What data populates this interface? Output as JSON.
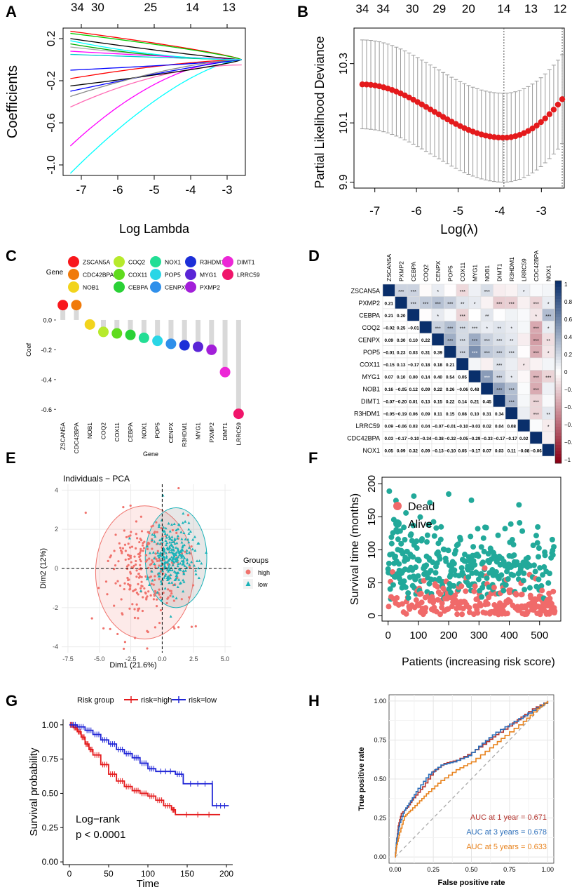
{
  "colors": {
    "red": "#e41a1c",
    "blue": "#1f24d6",
    "pca_high": "#f0736d",
    "pca_low": "#19b2b8",
    "dead": "#f06a6a",
    "alive": "#22a99a",
    "roc1": "#b2302a",
    "roc3": "#2c6fba",
    "roc5": "#e8821c",
    "corr_pos": "#0a2f6b",
    "corr_neg": "#8b0016"
  },
  "chart_data": [
    {
      "panel": "A",
      "type": "line",
      "xlabel": "Log Lambda",
      "ylabel": "Coefficients",
      "xlim": [
        -7.5,
        -2.5
      ],
      "ylim": [
        -1.1,
        0.3
      ],
      "x_ticks": [
        "-7",
        "-6",
        "-5",
        "-4",
        "-3"
      ],
      "y_ticks": [
        "0.2",
        "-0.2",
        "-0.6",
        "-1.0"
      ],
      "top_ticks": [
        "34",
        "30",
        "25",
        "14",
        "13"
      ],
      "x_start": -7.3,
      "x_end": -2.6,
      "series": [
        {
          "color": "#ff0000",
          "start": 0.27,
          "end": 0.0
        },
        {
          "color": "#000000",
          "start": 0.2,
          "end": 0.0
        },
        {
          "color": "#00ffff",
          "start": -1.08,
          "end": 0.0
        },
        {
          "color": "#ff00ff",
          "start": -0.82,
          "end": 0.0
        },
        {
          "color": "#00cc00",
          "start": 0.25,
          "end": 0.0
        },
        {
          "color": "#0000ff",
          "start": -0.3,
          "end": 0.0
        },
        {
          "color": "#aaaaaa",
          "start": 0.12,
          "end": 0.0
        },
        {
          "color": "#ff69b4",
          "start": -0.45,
          "end": -0.05
        },
        {
          "color": "#000000",
          "start": -0.25,
          "end": 0.0
        },
        {
          "color": "#00cccc",
          "start": 0.05,
          "end": 0.0
        },
        {
          "color": "#ff0000",
          "start": -0.18,
          "end": 0.0
        },
        {
          "color": "#00aa00",
          "start": 0.15,
          "end": 0.0
        },
        {
          "color": "#0000ff",
          "start": -0.1,
          "end": 0.0
        },
        {
          "color": "#ff00ff",
          "start": 0.08,
          "end": 0.0
        },
        {
          "color": "#888888",
          "start": -0.35,
          "end": 0.0
        },
        {
          "color": "#00ffff",
          "start": 0.18,
          "end": 0.0
        }
      ]
    },
    {
      "panel": "B",
      "type": "scatter",
      "xlabel": "Log(λ)",
      "ylabel": "Partial Likelihood Deviance",
      "xlim": [
        -7.5,
        -2.45
      ],
      "ylim": [
        9.88,
        10.42
      ],
      "x_ticks": [
        "-7",
        "-6",
        "-5",
        "-4",
        "-3"
      ],
      "y_ticks": [
        "10.3",
        "10.1",
        "9.9"
      ],
      "top_ticks": [
        "34",
        "34",
        "30",
        "29",
        "20",
        "14",
        "13",
        "12"
      ],
      "vlines": [
        -3.9,
        -2.5
      ],
      "x_start": -7.3,
      "x_end": -2.5,
      "n_points": 48,
      "deviance_start": 10.23,
      "deviance_min": 10.05,
      "deviance_end": 10.18,
      "error_halfwidth": 0.15
    },
    {
      "panel": "C",
      "type": "bar",
      "xlabel": "Gene",
      "ylabel": "Coef",
      "legend_title": "Gene",
      "categories": [
        "ZSCAN5A",
        "CDC42BPA",
        "NOB1",
        "COQ2",
        "COX11",
        "CEBPA",
        "NOX1",
        "POP5",
        "CENPX",
        "R3HDM1",
        "MYG1",
        "PXMP2",
        "DIMT1",
        "LRRC59"
      ],
      "values": [
        0.1,
        0.1,
        -0.03,
        -0.08,
        -0.09,
        -0.1,
        -0.12,
        -0.14,
        -0.16,
        -0.17,
        -0.18,
        -0.2,
        -0.35,
        -0.63
      ],
      "point_colors": [
        "#f8171c",
        "#f07a0a",
        "#f2d41c",
        "#b7ea2c",
        "#5fdb1e",
        "#2ad136",
        "#23de95",
        "#2ad6e6",
        "#2f8fea",
        "#1c2fd8",
        "#5a25d6",
        "#a21fd9",
        "#ec27d6",
        "#f0156a"
      ],
      "ylim": [
        -0.66,
        0.16
      ],
      "y_ticks": [
        "0.0",
        "-0.2",
        "-0.4",
        "-0.6"
      ]
    },
    {
      "panel": "D",
      "type": "heatmap",
      "genes": [
        "ZSCAN5A",
        "PXMP2",
        "CEBPA",
        "COQ2",
        "CENPX",
        "POP5",
        "COX11",
        "MYG1",
        "NOB1",
        "DIMT1",
        "R3HDM1",
        "LRRC59",
        "CDC42BPA",
        "NOX1"
      ],
      "lower": [
        [],
        [
          "0.21"
        ],
        [
          "0.21",
          "0.20"
        ],
        [
          "−0.02",
          "0.25",
          "−0.01"
        ],
        [
          "0.09",
          "0.30",
          "0.10",
          "0.22"
        ],
        [
          "−0.01",
          "0.23",
          "0.03",
          "0.31",
          "0.39"
        ],
        [
          "−0.15",
          "0.13",
          "−0.17",
          "0.18",
          "0.18",
          "0.21"
        ],
        [
          "0.07",
          "0.10",
          "0.00",
          "0.14",
          "0.40",
          "0.54",
          "0.05"
        ],
        [
          "0.16",
          "−0.05",
          "0.12",
          "0.09",
          "0.22",
          "0.26",
          "−0.06",
          "0.48"
        ],
        [
          "−0.07",
          "−0.20",
          "0.01",
          "0.13",
          "0.15",
          "0.22",
          "0.14",
          "0.21",
          "0.45"
        ],
        [
          "−0.05",
          "−0.19",
          "0.06",
          "0.09",
          "0.11",
          "0.15",
          "0.08",
          "0.10",
          "0.31",
          "0.34"
        ],
        [
          "0.09",
          "−0.06",
          "0.03",
          "0.04",
          "−0.07",
          "−0.01",
          "−0.10",
          "−0.03",
          "0.02",
          "0.04",
          "0.08"
        ],
        [
          "0.03",
          "−0.17",
          "−0.10",
          "−0.34",
          "−0.38",
          "−0.32",
          "−0.05",
          "−0.29",
          "−0.33",
          "−0.17",
          "−0.17",
          "0.02"
        ],
        [
          "0.05",
          "0.09",
          "0.32",
          "0.09",
          "−0.13",
          "−0.10",
          "0.05",
          "−0.17",
          "0.07",
          "0.03",
          "0.11",
          "−0.08",
          "−0.06"
        ]
      ],
      "upper": [
        [
          "",
          "***",
          "***",
          "",
          "*",
          "",
          "***",
          "",
          "***",
          "",
          "",
          "*",
          "",
          ""
        ],
        [
          "",
          "",
          "***",
          "***",
          "***",
          "***",
          "**",
          "*",
          "",
          "***",
          "***",
          "",
          "***",
          "*"
        ],
        [
          "",
          "",
          "",
          "",
          "*",
          "",
          "***",
          "",
          "**",
          "",
          "",
          "",
          "*",
          "***"
        ],
        [
          "",
          "",
          "",
          "",
          "***",
          "***",
          "***",
          "***",
          "*",
          "**",
          "*",
          "",
          "***",
          "*"
        ],
        [
          "",
          "",
          "",
          "",
          "",
          "***",
          "***",
          "***",
          "***",
          "***",
          "**",
          "",
          "***",
          "**"
        ],
        [
          "",
          "",
          "",
          "",
          "",
          "",
          "***",
          "***",
          "***",
          "***",
          "***",
          "",
          "***",
          "*"
        ],
        [
          "",
          "",
          "",
          "",
          "",
          "",
          "",
          "",
          "",
          "***",
          "",
          "*",
          "",
          ""
        ],
        [
          "",
          "",
          "",
          "",
          "",
          "",
          "",
          "",
          "***",
          "***",
          "*",
          "",
          "***",
          "***"
        ],
        [
          "",
          "",
          "",
          "",
          "",
          "",
          "",
          "",
          "",
          "***",
          "***",
          "",
          "***",
          ""
        ],
        [
          "",
          "",
          "",
          "",
          "",
          "",
          "",
          "",
          "",
          "",
          "***",
          "",
          "***",
          ""
        ],
        [
          "",
          "",
          "",
          "",
          "",
          "",
          "",
          "",
          "",
          "",
          "",
          "",
          "***",
          "**"
        ],
        [
          "",
          "",
          "",
          "",
          "",
          "",
          "",
          "",
          "",
          "",
          "",
          "",
          "",
          "*"
        ],
        [
          "",
          "",
          "",
          "",
          "",
          "",
          "",
          "",
          "",
          "",
          "",
          "",
          "",
          ""
        ],
        [
          "",
          "",
          "",
          "",
          "",
          "",
          "",
          "",
          "",
          "",
          "",
          "",
          "",
          ""
        ]
      ],
      "colorbar_ticks": [
        "1",
        "0.8",
        "0.6",
        "0.4",
        "0.2",
        "0",
        "−0.2",
        "−0.4",
        "−0.6",
        "−0.8",
        "−1"
      ]
    },
    {
      "panel": "E",
      "type": "scatter",
      "title": "Individuals − PCA",
      "xlabel": "Dim1 (21.6%)",
      "ylabel": "Dim2 (12%)",
      "xlim": [
        -8,
        5.5
      ],
      "ylim": [
        -4.3,
        4.3
      ],
      "x_ticks": [
        "-7.5",
        "-5.0",
        "-2.5",
        "0.0",
        "2.5",
        "5.0"
      ],
      "y_ticks": [
        "4",
        "2",
        "0",
        "-2",
        "-4"
      ],
      "legend_title": "Groups",
      "groups": [
        "high",
        "low"
      ],
      "high_center": [
        -1.2,
        -0.1
      ],
      "high_spread": [
        1.5,
        1.4
      ],
      "low_center": [
        0.9,
        0.6
      ],
      "low_spread": [
        1.0,
        0.9
      ],
      "ellipse_high": {
        "cx": -1.4,
        "cy": -0.2,
        "rx": 3.9,
        "ry": 3.4
      },
      "ellipse_low": {
        "cx": 1.1,
        "cy": 0.55,
        "rx": 2.45,
        "ry": 2.55
      },
      "n_points": 270
    },
    {
      "panel": "F",
      "type": "scatter",
      "xlabel": "Patients (increasing risk score)",
      "ylabel": "Survival time (months)",
      "xlim": [
        -20,
        570
      ],
      "ylim": [
        -8,
        210
      ],
      "x_ticks": [
        "0",
        "100",
        "200",
        "300",
        "400",
        "500"
      ],
      "y_ticks": [
        "0",
        "50",
        "100",
        "150",
        "200"
      ],
      "legend": [
        "Dead",
        "Alive"
      ],
      "n_patients": 551
    },
    {
      "panel": "G",
      "type": "line",
      "xlabel": "Time",
      "ylabel": "Survival probability",
      "xlim": [
        -8,
        208
      ],
      "ylim": [
        -0.02,
        1.04
      ],
      "x_ticks": [
        "0",
        "50",
        "100",
        "150",
        "200"
      ],
      "y_ticks": [
        "1.00",
        "0.75",
        "0.50",
        "0.25",
        "0.00"
      ],
      "legend_title": "Risk group",
      "legend": [
        "risk=high",
        "risk=low"
      ],
      "annotation": [
        "Log−rank",
        "p < 0.0001"
      ],
      "high_steps": [
        [
          0,
          1.0
        ],
        [
          5,
          0.98
        ],
        [
          10,
          0.95
        ],
        [
          15,
          0.91
        ],
        [
          20,
          0.86
        ],
        [
          25,
          0.82
        ],
        [
          30,
          0.78
        ],
        [
          40,
          0.71
        ],
        [
          50,
          0.64
        ],
        [
          60,
          0.59
        ],
        [
          70,
          0.55
        ],
        [
          80,
          0.52
        ],
        [
          90,
          0.5
        ],
        [
          100,
          0.48
        ],
        [
          110,
          0.45
        ],
        [
          120,
          0.41
        ],
        [
          130,
          0.38
        ],
        [
          135,
          0.345
        ],
        [
          192,
          0.345
        ]
      ],
      "low_steps": [
        [
          0,
          1.0
        ],
        [
          10,
          0.985
        ],
        [
          20,
          0.96
        ],
        [
          30,
          0.93
        ],
        [
          40,
          0.89
        ],
        [
          50,
          0.86
        ],
        [
          60,
          0.82
        ],
        [
          70,
          0.79
        ],
        [
          80,
          0.76
        ],
        [
          90,
          0.72
        ],
        [
          100,
          0.68
        ],
        [
          110,
          0.66
        ],
        [
          135,
          0.64
        ],
        [
          145,
          0.57
        ],
        [
          182,
          0.57
        ],
        [
          182,
          0.41
        ],
        [
          203,
          0.41
        ]
      ]
    },
    {
      "panel": "H",
      "type": "line",
      "xlabel": "False positive rate",
      "ylabel": "True positive rate",
      "xlim": [
        -0.04,
        1.04
      ],
      "ylim": [
        -0.04,
        1.04
      ],
      "x_ticks": [
        "0.00",
        "0.25",
        "0.50",
        "0.75",
        "1.00"
      ],
      "y_ticks": [
        "1.00",
        "0.75",
        "0.50",
        "0.25",
        "0.00"
      ],
      "auc_labels": [
        "AUC at 1 year = 0.671",
        "AUC at 3 years = 0.678",
        "AUC at 5 years = 0.633"
      ],
      "curves": [
        [
          [
            0,
            0
          ],
          [
            0.01,
            0.1
          ],
          [
            0.02,
            0.2
          ],
          [
            0.04,
            0.28
          ],
          [
            0.08,
            0.32
          ],
          [
            0.12,
            0.38
          ],
          [
            0.18,
            0.45
          ],
          [
            0.25,
            0.55
          ],
          [
            0.32,
            0.6
          ],
          [
            0.4,
            0.62
          ],
          [
            0.5,
            0.67
          ],
          [
            0.6,
            0.74
          ],
          [
            0.68,
            0.8
          ],
          [
            0.8,
            0.88
          ],
          [
            0.9,
            0.95
          ],
          [
            1,
            1
          ]
        ],
        [
          [
            0,
            0
          ],
          [
            0.01,
            0.12
          ],
          [
            0.03,
            0.22
          ],
          [
            0.06,
            0.3
          ],
          [
            0.1,
            0.36
          ],
          [
            0.15,
            0.44
          ],
          [
            0.22,
            0.53
          ],
          [
            0.3,
            0.59
          ],
          [
            0.38,
            0.61
          ],
          [
            0.48,
            0.65
          ],
          [
            0.57,
            0.73
          ],
          [
            0.66,
            0.8
          ],
          [
            0.78,
            0.87
          ],
          [
            0.9,
            0.94
          ],
          [
            1,
            1
          ]
        ],
        [
          [
            0,
            0
          ],
          [
            0.01,
            0.08
          ],
          [
            0.03,
            0.16
          ],
          [
            0.06,
            0.26
          ],
          [
            0.1,
            0.3
          ],
          [
            0.16,
            0.36
          ],
          [
            0.22,
            0.42
          ],
          [
            0.3,
            0.49
          ],
          [
            0.4,
            0.56
          ],
          [
            0.5,
            0.61
          ],
          [
            0.62,
            0.7
          ],
          [
            0.72,
            0.78
          ],
          [
            0.84,
            0.87
          ],
          [
            0.93,
            0.95
          ],
          [
            1,
            1
          ]
        ]
      ]
    }
  ],
  "labels": {
    "A": "A",
    "B": "B",
    "C": "C",
    "D": "D",
    "E": "E",
    "F": "F",
    "G": "G",
    "H": "H"
  }
}
